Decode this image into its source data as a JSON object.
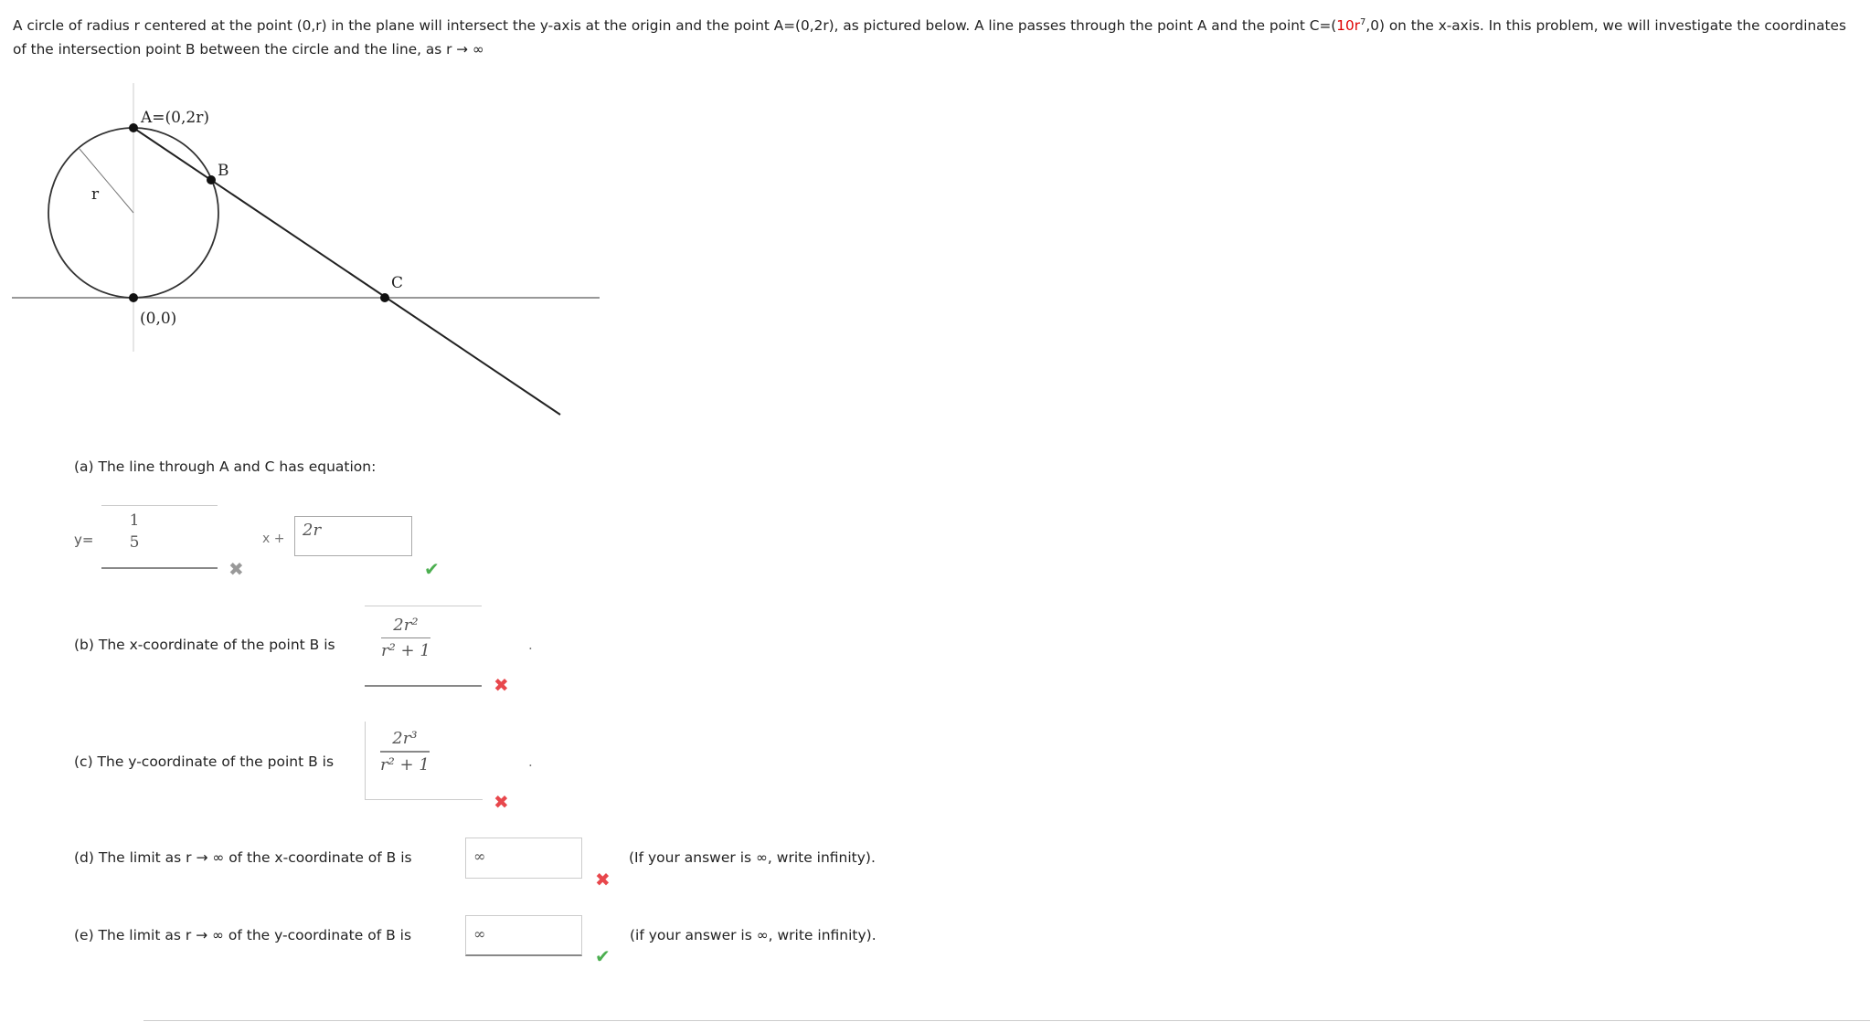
{
  "intro": {
    "part1": "A circle of radius r centered at the point (0,r) in the plane will intersect the y-axis at the origin and the point A=(0,2r), as pictured below. A line passes through the point A and the point C=(",
    "c_coef": "10r",
    "c_exp": "7",
    "part2": ",0) on the x-axis. In this problem, we will investigate the coordinates of the intersection point B between the circle and the line, as r → ∞"
  },
  "diagram": {
    "label_a": "A=(0,2r)",
    "label_b": "B",
    "label_r": "r",
    "label_c": "C",
    "label_origin": "(0,0)"
  },
  "part_a": {
    "prompt": "(a) The line through A and C has equation:",
    "y_label": "y=",
    "slope_num": "1",
    "slope_den": "5",
    "x_plus": "x +",
    "intercept_value": "2r",
    "slope_status": "incorrect-gray",
    "intercept_status": "correct"
  },
  "part_b": {
    "prompt": "(b) The x-coordinate of the point B is",
    "num": "2r²",
    "den": "r² + 1",
    "period": ".",
    "status": "incorrect"
  },
  "part_c": {
    "prompt": "(c) The y-coordinate of the point B is",
    "num": "2r³",
    "den": "r² + 1",
    "period": ".",
    "status": "incorrect"
  },
  "part_d": {
    "prompt": "(d) The limit as r → ∞ of the x-coordinate of B is",
    "value": "∞",
    "hint": "(If your answer is ∞, write infinity).",
    "status": "incorrect"
  },
  "part_e": {
    "prompt": "(e) The limit as r → ∞ of the y-coordinate of B is",
    "value": "∞",
    "hint": "(if your answer is ∞, write infinity).",
    "status": "correct"
  },
  "colors": {
    "incorrect": "#e8474c",
    "correct": "#4caf50",
    "highlight": "#e00000"
  },
  "icons": {
    "incorrect": "x-mark-icon",
    "correct": "check-mark-icon"
  }
}
